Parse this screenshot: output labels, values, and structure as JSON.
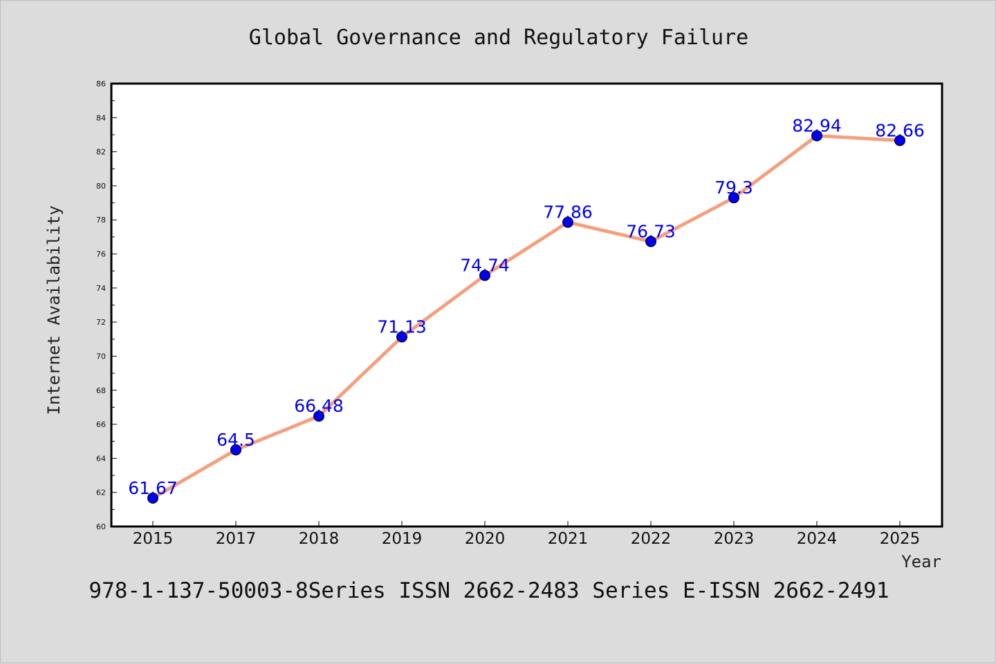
{
  "chart_data": {
    "type": "line",
    "title": "Global Governance and Regulatory Failure",
    "xlabel": "Year",
    "ylabel": "Internet Availability",
    "categories": [
      "2015",
      "2017",
      "2018",
      "2019",
      "2020",
      "2021",
      "2022",
      "2023",
      "2024",
      "2025"
    ],
    "series": [
      {
        "values": [
          61.67,
          64.5,
          66.48,
          71.13,
          74.74,
          77.86,
          76.73,
          79.3,
          82.94,
          82.66
        ],
        "data_labels": [
          "61.67",
          "64.5",
          "66.48",
          "71.13",
          "74.74",
          "77.86",
          "76.73",
          "79.3",
          "82.94",
          "82.66"
        ],
        "line_color": "#f4a07e",
        "marker_color": "#0000ee",
        "label_color": "#0000ee"
      }
    ],
    "ylim": [
      60,
      86
    ],
    "yticks": [
      "60",
      "62",
      "64",
      "66",
      "68",
      "70",
      "72",
      "74",
      "76",
      "78",
      "80",
      "82",
      "84",
      "86"
    ],
    "grid": false,
    "legend": "none"
  },
  "footer": "978-1-137-50003-8Series ISSN 2662-2483 Series E-ISSN 2662-2491",
  "colors": {
    "background": "#dcdcdc",
    "plot_background": "#ffffff",
    "axis": "#000000"
  }
}
